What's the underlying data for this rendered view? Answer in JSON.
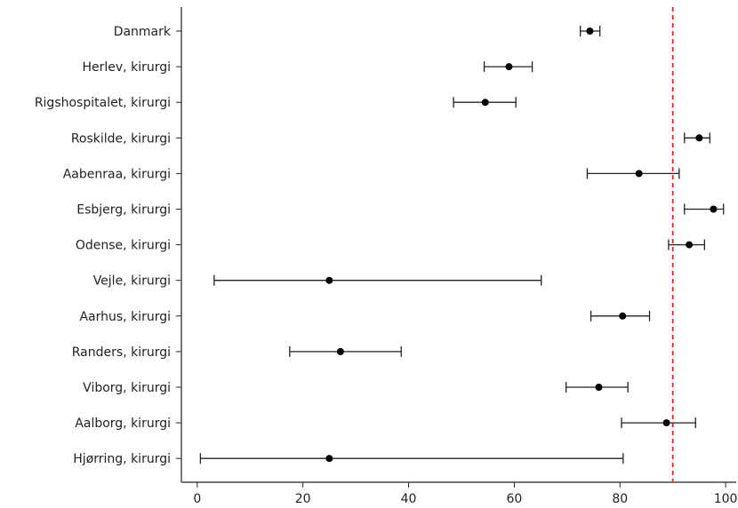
{
  "chart_data": {
    "type": "scatter",
    "subtype": "forest-plot",
    "title": "",
    "xlabel": "",
    "ylabel": "",
    "xlim": [
      -3,
      102
    ],
    "x_ticks": [
      0,
      20,
      40,
      60,
      80,
      100
    ],
    "grid": false,
    "reference_line": {
      "x": 90,
      "style": "dashed",
      "color": "#e8232a"
    },
    "point_color": "#000000",
    "series": [
      {
        "points": [
          {
            "label": "Danmark",
            "value": 74.3,
            "lower": 72.5,
            "upper": 76.2
          },
          {
            "label": "Herlev, kirurgi",
            "value": 59.0,
            "lower": 54.3,
            "upper": 63.4
          },
          {
            "label": "Rigshospitalet, kirurgi",
            "value": 54.5,
            "lower": 48.5,
            "upper": 60.3
          },
          {
            "label": "Roskilde, kirurgi",
            "value": 95.0,
            "lower": 92.2,
            "upper": 97.0
          },
          {
            "label": "Aabenraa, kirurgi",
            "value": 83.6,
            "lower": 73.8,
            "upper": 91.2
          },
          {
            "label": "Esbjerg, kirurgi",
            "value": 97.7,
            "lower": 92.2,
            "upper": 99.6
          },
          {
            "label": "Odense, kirurgi",
            "value": 93.1,
            "lower": 89.2,
            "upper": 96.0
          },
          {
            "label": "Vejle, kirurgi",
            "value": 25.0,
            "lower": 3.2,
            "upper": 65.1
          },
          {
            "label": "Aarhus, kirurgi",
            "value": 80.5,
            "lower": 74.5,
            "upper": 85.6
          },
          {
            "label": "Randers, kirurgi",
            "value": 27.1,
            "lower": 17.5,
            "upper": 38.6
          },
          {
            "label": "Viborg, kirurgi",
            "value": 76.0,
            "lower": 69.8,
            "upper": 81.5
          },
          {
            "label": "Aalborg, kirurgi",
            "value": 88.8,
            "lower": 80.3,
            "upper": 94.3
          },
          {
            "label": "Hjørring, kirurgi",
            "value": 25.0,
            "lower": 0.6,
            "upper": 80.6
          }
        ]
      }
    ]
  }
}
